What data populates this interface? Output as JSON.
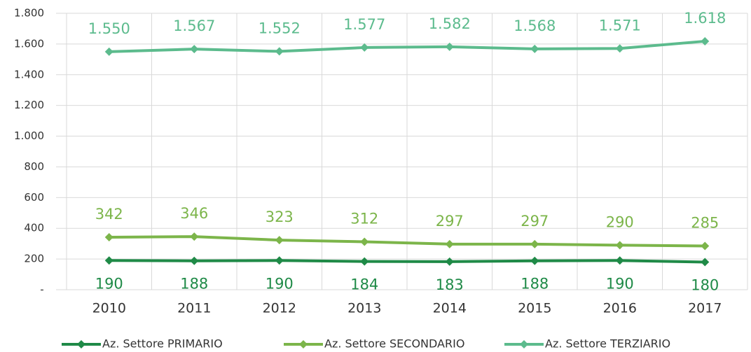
{
  "chart_data": {
    "type": "line",
    "categories": [
      "2010",
      "2011",
      "2012",
      "2013",
      "2014",
      "2015",
      "2016",
      "2017"
    ],
    "series": [
      {
        "name": "Az. Settore PRIMARIO",
        "color": "#1f8a47",
        "values": [
          190,
          188,
          190,
          184,
          183,
          188,
          190,
          180
        ]
      },
      {
        "name": "Az. Settore SECONDARIO",
        "color": "#7cb54a",
        "values": [
          342,
          346,
          323,
          312,
          297,
          297,
          290,
          285
        ]
      },
      {
        "name": "Az. Settore TERZIARIO",
        "color": "#5cbb8d",
        "values": [
          1550,
          1567,
          1552,
          1577,
          1582,
          1568,
          1571,
          1618
        ],
        "value_labels": [
          "1.550",
          "1.567",
          "1.552",
          "1.577",
          "1.582",
          "1.568",
          "1.571",
          "1.618"
        ]
      }
    ],
    "ylim": [
      0,
      1800
    ],
    "yticks": [
      {
        "value": 0,
        "label": "-"
      },
      200,
      400,
      600,
      800,
      {
        "value": 1000,
        "label": "1.000"
      },
      {
        "value": 1200,
        "label": "1.200"
      },
      {
        "value": 1400,
        "label": "1.400"
      },
      {
        "value": 1600,
        "label": "1.600"
      },
      {
        "value": 1800,
        "label": "1.800"
      }
    ],
    "grid": true,
    "legend": "bottom"
  }
}
